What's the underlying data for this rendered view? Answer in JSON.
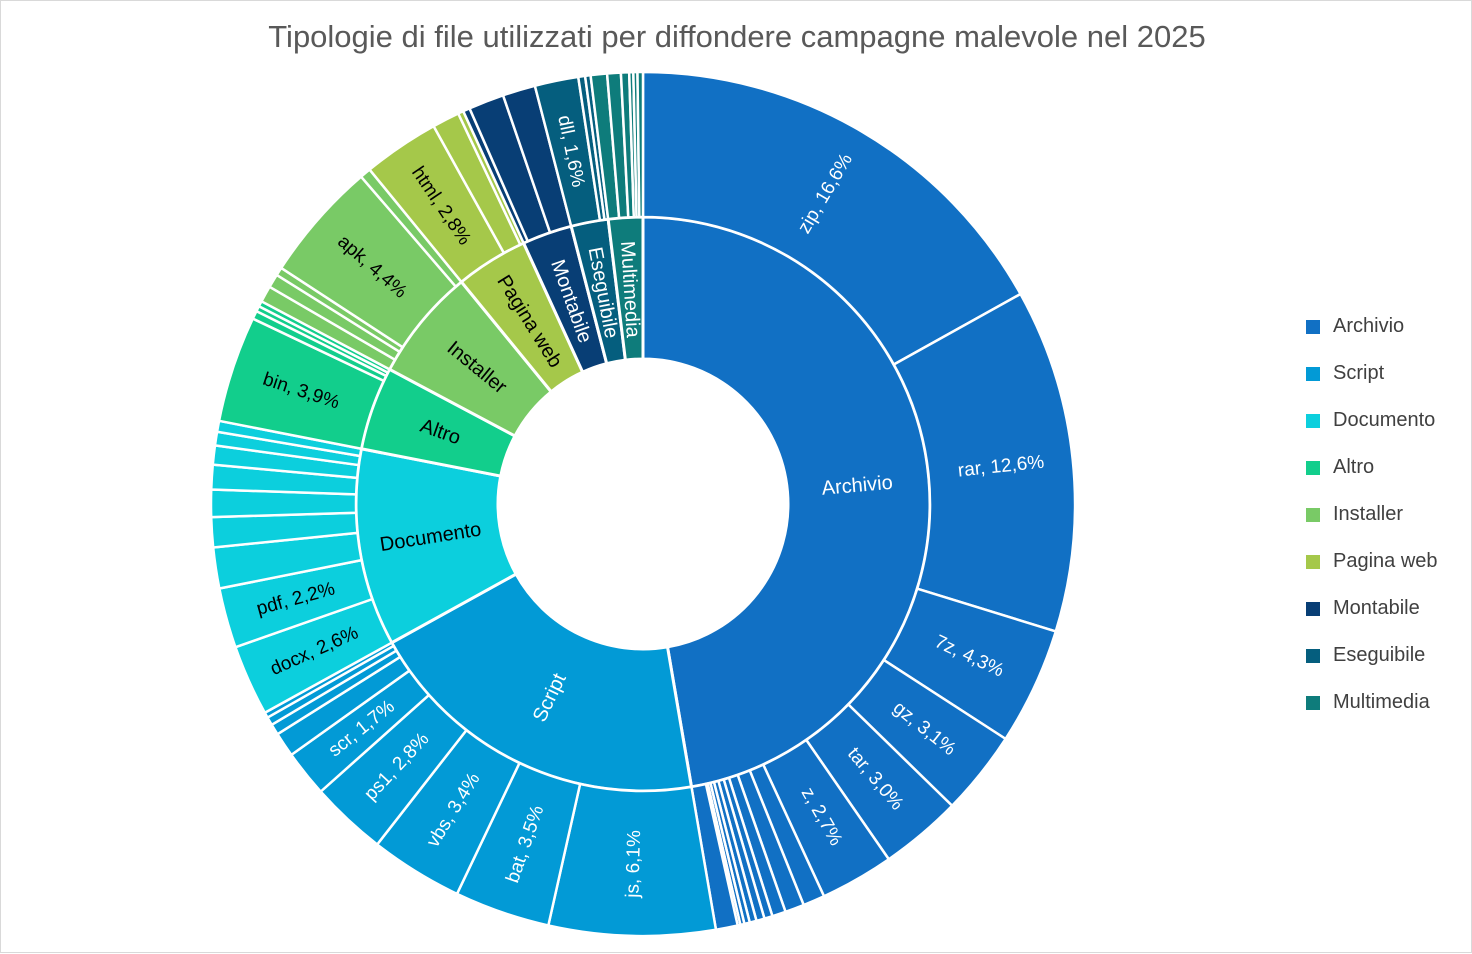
{
  "chart_data": {
    "type": "sunburst",
    "title": "Tipologie di file utilizzati per diffondere campagne malevole nel 2025",
    "legend_position": "right",
    "categories": [
      {
        "name": "Archivio",
        "color": "#1170C4",
        "label_color": "#ffffff",
        "children": [
          {
            "name": "zip",
            "value": 16.6,
            "label": "zip, 16,6%"
          },
          {
            "name": "rar",
            "value": 12.6,
            "label": "rar, 12,6%"
          },
          {
            "name": "7z",
            "value": 4.3,
            "label": "7z, 4,3%"
          },
          {
            "name": "gz",
            "value": 3.1,
            "label": "gz, 3,1%"
          },
          {
            "name": "tar",
            "value": 3.0,
            "label": "tar, 3,0%"
          },
          {
            "name": "z",
            "value": 2.7,
            "label": "z, 2,7%"
          },
          {
            "name": "other",
            "value": 0.8,
            "label": ""
          },
          {
            "name": "other",
            "value": 0.7,
            "label": ""
          },
          {
            "name": "other",
            "value": 0.5,
            "label": ""
          },
          {
            "name": "other",
            "value": 0.3,
            "label": ""
          },
          {
            "name": "other",
            "value": 0.3,
            "label": ""
          },
          {
            "name": "other",
            "value": 0.25,
            "label": ""
          },
          {
            "name": "other",
            "value": 0.2,
            "label": ""
          },
          {
            "name": "other",
            "value": 0.15,
            "label": ""
          },
          {
            "name": "other",
            "value": 0.1,
            "label": ""
          },
          {
            "name": "other",
            "value": 0.8,
            "label": ""
          }
        ]
      },
      {
        "name": "Script",
        "color": "#029AD6",
        "label_color": "#ffffff",
        "children": [
          {
            "name": "js",
            "value": 6.1,
            "label": "js, 6,1%"
          },
          {
            "name": "bat",
            "value": 3.5,
            "label": "bat, 3,5%"
          },
          {
            "name": "vbs",
            "value": 3.4,
            "label": "vbs, 3,4%"
          },
          {
            "name": "ps1",
            "value": 2.8,
            "label": "ps1, 2,8%"
          },
          {
            "name": "scr",
            "value": 1.7,
            "label": "scr, 1,7%"
          },
          {
            "name": "other",
            "value": 0.9,
            "label": ""
          },
          {
            "name": "other",
            "value": 0.4,
            "label": ""
          },
          {
            "name": "other",
            "value": 0.3,
            "label": ""
          },
          {
            "name": "other",
            "value": 0.2,
            "label": ""
          }
        ]
      },
      {
        "name": "Documento",
        "color": "#0CCFDD",
        "label_color": "#000000",
        "children": [
          {
            "name": "docx",
            "value": 2.6,
            "label": "docx, 2,6%"
          },
          {
            "name": "pdf",
            "value": 2.2,
            "label": "pdf, 2,2%"
          },
          {
            "name": "other",
            "value": 1.5,
            "label": ""
          },
          {
            "name": "other",
            "value": 1.1,
            "label": ""
          },
          {
            "name": "other",
            "value": 1.0,
            "label": ""
          },
          {
            "name": "other",
            "value": 0.9,
            "label": ""
          },
          {
            "name": "other",
            "value": 0.7,
            "label": ""
          },
          {
            "name": "other",
            "value": 0.5,
            "label": ""
          },
          {
            "name": "other",
            "value": 0.4,
            "label": ""
          }
        ]
      },
      {
        "name": "Altro",
        "color": "#12CE8C",
        "label_color": "#000000",
        "children": [
          {
            "name": "bin",
            "value": 3.9,
            "label": "bin, 3,9%"
          },
          {
            "name": "other",
            "value": 0.3,
            "label": ""
          },
          {
            "name": "other",
            "value": 0.2,
            "label": ""
          },
          {
            "name": "other",
            "value": 0.2,
            "label": ""
          }
        ]
      },
      {
        "name": "Installer",
        "color": "#79CA66",
        "label_color": "#000000",
        "children": [
          {
            "name": "other",
            "value": 0.6,
            "label": ""
          },
          {
            "name": "other",
            "value": 0.5,
            "label": ""
          },
          {
            "name": "other",
            "value": 0.3,
            "label": ""
          },
          {
            "name": "apk",
            "value": 4.4,
            "label": "apk, 4,4%"
          },
          {
            "name": "other",
            "value": 0.4,
            "label": ""
          }
        ]
      },
      {
        "name": "Pagina web",
        "color": "#A5C84A",
        "label_color": "#000000",
        "children": [
          {
            "name": "html",
            "value": 2.8,
            "label": "html, 2,8%"
          },
          {
            "name": "other",
            "value": 1.0,
            "label": ""
          },
          {
            "name": "other",
            "value": 0.2,
            "label": ""
          }
        ]
      },
      {
        "name": "Montabile",
        "color": "#083E75",
        "label_color": "#ffffff",
        "children": [
          {
            "name": "other",
            "value": 0.25,
            "label": ""
          },
          {
            "name": "other",
            "value": 1.3,
            "label": ""
          },
          {
            "name": "other",
            "value": 1.2,
            "label": ""
          }
        ]
      },
      {
        "name": "Eseguibile",
        "color": "#055E7E",
        "label_color": "#ffffff",
        "children": [
          {
            "name": "dll",
            "value": 1.6,
            "label": "dll, 1,6%"
          },
          {
            "name": "other",
            "value": 0.25,
            "label": ""
          },
          {
            "name": "other",
            "value": 0.2,
            "label": ""
          }
        ]
      },
      {
        "name": "Multimedia",
        "color": "#0E7C7B",
        "label_color": "#ffffff",
        "children": [
          {
            "name": "other",
            "value": 0.6,
            "label": ""
          },
          {
            "name": "other",
            "value": 0.5,
            "label": ""
          },
          {
            "name": "other",
            "value": 0.3,
            "label": ""
          },
          {
            "name": "other",
            "value": 0.15,
            "label": ""
          },
          {
            "name": "other",
            "value": 0.15,
            "label": ""
          },
          {
            "name": "other",
            "value": 0.2,
            "label": ""
          }
        ]
      }
    ]
  }
}
